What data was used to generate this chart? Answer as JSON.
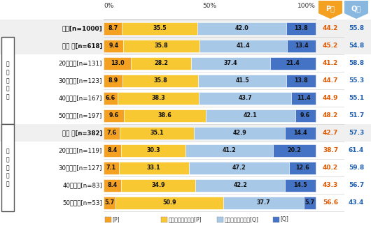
{
  "rows": [
    {
      "label": "全体[n=1000]",
      "P": 8.7,
      "dP": 35.5,
      "dQ": 42.0,
      "Q": 13.8,
      "Psum": 44.2,
      "Qsum": 55.8,
      "indent": 0
    },
    {
      "label": "男性 計[n=618]",
      "P": 9.4,
      "dP": 35.8,
      "dQ": 41.4,
      "Q": 13.4,
      "Psum": 45.2,
      "Qsum": 54.8,
      "indent": 1
    },
    {
      "label": "20代男性[n=131]",
      "P": 13.0,
      "dP": 28.2,
      "dQ": 37.4,
      "Q": 21.4,
      "Psum": 41.2,
      "Qsum": 58.8,
      "indent": 2
    },
    {
      "label": "30代男性[n=123]",
      "P": 8.9,
      "dP": 35.8,
      "dQ": 41.5,
      "Q": 13.8,
      "Psum": 44.7,
      "Qsum": 55.3,
      "indent": 2
    },
    {
      "label": "40代男性[n=167]",
      "P": 6.6,
      "dP": 38.3,
      "dQ": 43.7,
      "Q": 11.4,
      "Psum": 44.9,
      "Qsum": 55.1,
      "indent": 2
    },
    {
      "label": "50代男性[n=197]",
      "P": 9.6,
      "dP": 38.6,
      "dQ": 42.1,
      "Q": 9.6,
      "Psum": 48.2,
      "Qsum": 51.7,
      "indent": 2
    },
    {
      "label": "女性 計[n=382]",
      "P": 7.6,
      "dP": 35.1,
      "dQ": 42.9,
      "Q": 14.4,
      "Psum": 42.7,
      "Qsum": 57.3,
      "indent": 1
    },
    {
      "label": "20代女性[n=119]",
      "P": 8.4,
      "dP": 30.3,
      "dQ": 41.2,
      "Q": 20.2,
      "Psum": 38.7,
      "Qsum": 61.4,
      "indent": 2
    },
    {
      "label": "30代女性[n=127]",
      "P": 7.1,
      "dP": 33.1,
      "dQ": 47.2,
      "Q": 12.6,
      "Psum": 40.2,
      "Qsum": 59.8,
      "indent": 2
    },
    {
      "label": "40代女性[n=83]",
      "P": 8.4,
      "dP": 34.9,
      "dQ": 42.2,
      "Q": 14.5,
      "Psum": 43.3,
      "Qsum": 56.7,
      "indent": 2
    },
    {
      "label": "50代女性[n=53]",
      "P": 5.7,
      "dP": 50.9,
      "dQ": 37.7,
      "Q": 5.7,
      "Psum": 56.6,
      "Qsum": 43.4,
      "indent": 2
    }
  ],
  "col_colors": [
    "#F4A020",
    "#F8C832",
    "#A8C8E8",
    "#4472C4"
  ],
  "Psum_color": "#E05800",
  "Qsum_color": "#2060B0",
  "Ph_bg": "#F4A020",
  "Qh_bg": "#88B8E0",
  "legend_labels": [
    "[P]",
    "どちらかといえば[P]",
    "どちらかといえば[Q]",
    "[Q]"
  ],
  "legend_colors": [
    "#F4A020",
    "#F8C832",
    "#A8C8E8",
    "#4472C4"
  ],
  "male_rows": [
    1,
    2,
    3,
    4,
    5
  ],
  "female_rows": [
    6,
    7,
    8,
    9,
    10
  ],
  "male_label": "男\n性\n年\n代\n別",
  "female_label": "女\n性\n年\n代\n別"
}
